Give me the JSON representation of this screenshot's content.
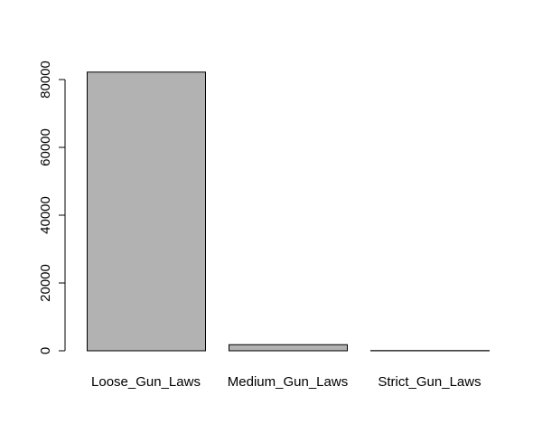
{
  "chart_data": {
    "type": "bar",
    "title": "",
    "xlabel": "",
    "ylabel": "",
    "categories": [
      "Loose_Gun_Laws",
      "Medium_Gun_Laws",
      "Strict_Gun_Laws"
    ],
    "values": [
      82200,
      1800,
      60
    ],
    "ylim": [
      0,
      82200
    ],
    "yticks": [
      0,
      20000,
      40000,
      60000,
      80000
    ],
    "ytick_labels": [
      "0",
      "20000",
      "40000",
      "60000",
      "80000"
    ],
    "bar_color": "#b2b2b2",
    "border_color": "#000000",
    "grid": false,
    "legend": "none"
  }
}
